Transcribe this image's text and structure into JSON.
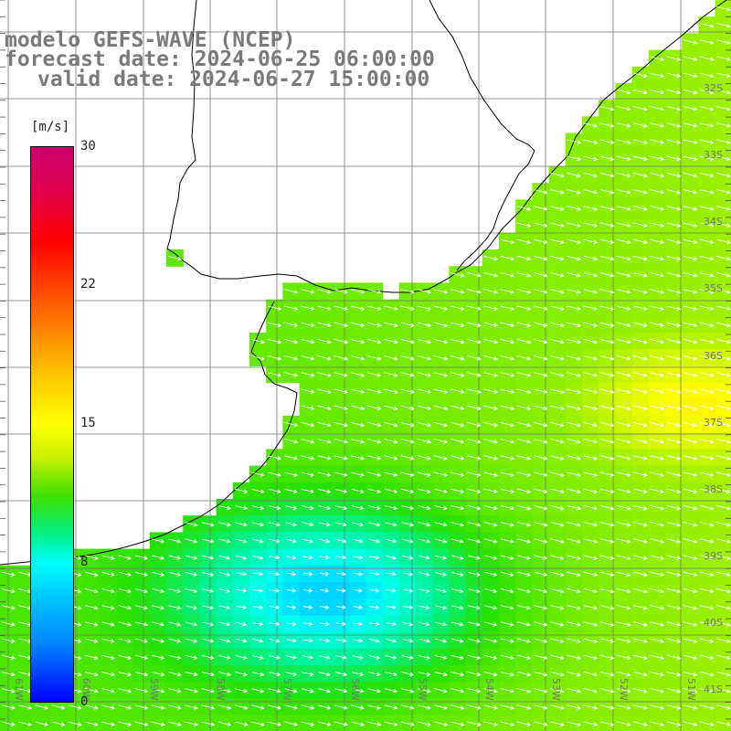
{
  "titles": {
    "line1": "modelo GEFS-WAVE (NCEP)",
    "line2": "forecast date: 2024-06-25 06:00:00",
    "line3": "valid date: 2024-06-27 15:00:00"
  },
  "legend": {
    "units": "[m/s]",
    "ticks": [
      "30",
      "22",
      "15",
      "8",
      "0"
    ],
    "tick_values": [
      30,
      22,
      15,
      8,
      0
    ]
  },
  "lat_labels": [
    "32S",
    "33S",
    "34S",
    "35S",
    "36S",
    "37S",
    "38S",
    "39S",
    "40S",
    "41S"
  ],
  "lon_labels": [
    "61W",
    "60W",
    "59W",
    "58W",
    "57W",
    "56W",
    "55W",
    "54W",
    "53W",
    "52W",
    "51W"
  ]
}
